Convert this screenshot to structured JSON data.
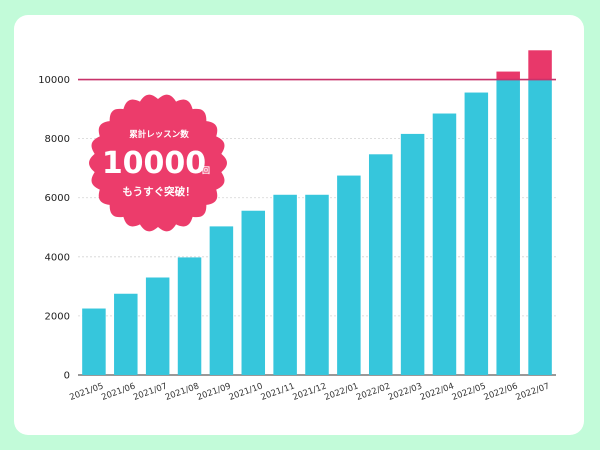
{
  "colors": {
    "background": "#c2fbd9",
    "card": "#ffffff",
    "bar": "#36c6dc",
    "over_target": "#e8386a",
    "target_line": "#c8336a",
    "badge": "#ec3c6b"
  },
  "badge": {
    "line1": "累計レッスン数",
    "number": "10000",
    "unit": "回",
    "line3": "もうすぐ突破！"
  },
  "chart_data": {
    "type": "bar",
    "title": "",
    "xlabel": "",
    "ylabel": "",
    "ylim": [
      0,
      11000
    ],
    "yticks": [
      0,
      2000,
      4000,
      6000,
      8000,
      10000
    ],
    "grid": true,
    "target_line": 10000,
    "categories": [
      "2021/05",
      "2021/06",
      "2021/07",
      "2021/08",
      "2021/09",
      "2021/10",
      "2021/11",
      "2021/12",
      "2022/01",
      "2022/02",
      "2022/03",
      "2022/04",
      "2022/05",
      "2022/06",
      "2022/07"
    ],
    "values": [
      2250,
      2750,
      3300,
      3980,
      5030,
      5560,
      6100,
      6100,
      6750,
      7470,
      8160,
      8850,
      9560,
      10270,
      10990
    ]
  }
}
